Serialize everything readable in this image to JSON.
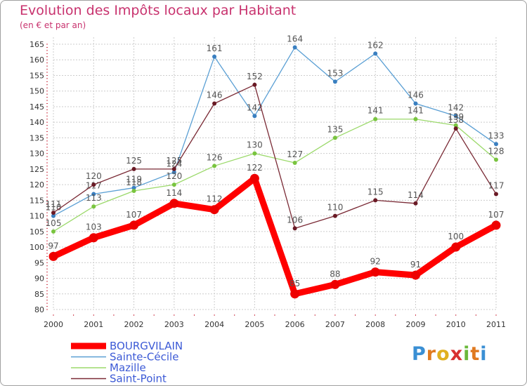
{
  "header": {
    "title": "Evolution des Impôts locaux par Habitant",
    "subtitle": "(en € et par an)"
  },
  "logo": {
    "letters": [
      "P",
      "r",
      "o",
      "x",
      "i",
      "t",
      "i"
    ]
  },
  "colors": {
    "title": "#c8326e",
    "grid": "#cccccc",
    "axis_text": "#333333",
    "label_text": "#555555",
    "legend_text": "#3c5ad6"
  },
  "chart_data": {
    "type": "line",
    "title": "Evolution des Impôts locaux par Habitant",
    "subtitle": "(en € et par an)",
    "xlabel": "",
    "ylabel": "",
    "x": [
      "2000",
      "2001",
      "2002",
      "2003",
      "2004",
      "2005",
      "2006",
      "2007",
      "2008",
      "2009",
      "2010",
      "2011"
    ],
    "ylim": [
      80,
      165
    ],
    "ytick_step": 5,
    "grid": true,
    "legend_position": "bottom-left",
    "series": [
      {
        "name": "Sainte-Cécile",
        "color": "#5a9fd4",
        "marker": "#3a7fc0",
        "values": [
          110,
          117,
          119,
          124,
          161,
          142,
          164,
          153,
          162,
          146,
          142,
          133
        ],
        "labels": [
          "110",
          "117",
          "119",
          "124",
          "161",
          "142",
          "164",
          "153",
          "162",
          "146",
          "142",
          "133"
        ]
      },
      {
        "name": "Mazille",
        "color": "#9bd96a",
        "marker": "#79c43f",
        "values": [
          105,
          113,
          118,
          120,
          126,
          130,
          127,
          135,
          141,
          141,
          139,
          128
        ],
        "labels": [
          "105",
          "113",
          "118",
          "120",
          "126",
          "130",
          "127",
          "135",
          "141",
          "141",
          "139",
          "128"
        ]
      },
      {
        "name": "Saint-Point",
        "color": "#7a2a35",
        "marker": "#6a1a25",
        "values": [
          111,
          120,
          125,
          125,
          146,
          152,
          106,
          110,
          115,
          114,
          138,
          117
        ],
        "labels": [
          "111",
          "120",
          "125",
          "125",
          "146",
          "152",
          "106",
          "110",
          "115",
          "114",
          "138",
          "117"
        ]
      },
      {
        "name": "BOURGVILAIN",
        "color": "#ff0000",
        "marker": "#ee0000",
        "values": [
          97,
          103,
          107,
          114,
          112,
          122,
          85,
          88,
          92,
          91,
          100,
          107
        ],
        "labels": [
          "97",
          "103",
          "107",
          "114",
          "112",
          "122",
          "85",
          "88",
          "92",
          "91",
          "100",
          "107"
        ]
      }
    ],
    "legend_order": [
      "BOURGVILAIN",
      "Sainte-Cécile",
      "Mazille",
      "Saint-Point"
    ]
  }
}
